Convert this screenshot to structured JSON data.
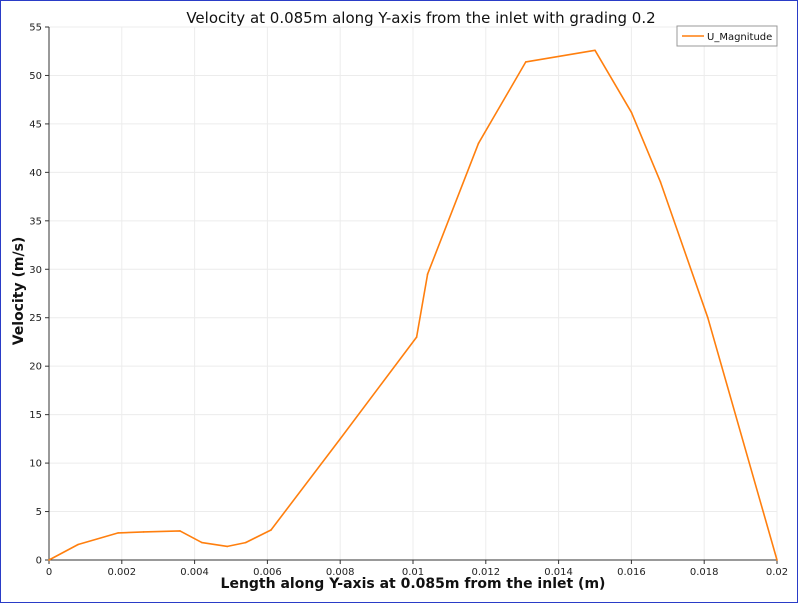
{
  "chart_data": {
    "type": "line",
    "title": "Velocity at 0.085m along Y-axis from the inlet with grading 0.2",
    "xlabel": "Length along Y-axis at 0.085m from the inlet (m)",
    "ylabel": "Velocity (m/s)",
    "xlim": [
      0,
      0.02
    ],
    "ylim": [
      0,
      55
    ],
    "x_ticks": [
      "0",
      "0.002",
      "0.004",
      "0.006",
      "0.008",
      "0.01",
      "0.012",
      "0.014",
      "0.016",
      "0.018",
      "0.02"
    ],
    "y_ticks": [
      "0",
      "5",
      "10",
      "15",
      "20",
      "25",
      "30",
      "35",
      "40",
      "45",
      "50",
      "55"
    ],
    "grid": true,
    "legend_position": "top-right",
    "series": [
      {
        "name": "U_Magnitude",
        "color": "#ff7f0e",
        "x": [
          0,
          0.0008,
          0.0019,
          0.0026,
          0.0036,
          0.0042,
          0.0049,
          0.0054,
          0.0061,
          0.008,
          0.0101,
          0.0104,
          0.0118,
          0.0131,
          0.015,
          0.016,
          0.0168,
          0.0181,
          0.02
        ],
        "y": [
          0,
          1.6,
          2.8,
          2.9,
          3.0,
          1.8,
          1.4,
          1.8,
          3.1,
          12.5,
          23.0,
          29.5,
          43.0,
          51.4,
          52.6,
          46.2,
          39.0,
          25.0,
          0
        ]
      }
    ]
  }
}
